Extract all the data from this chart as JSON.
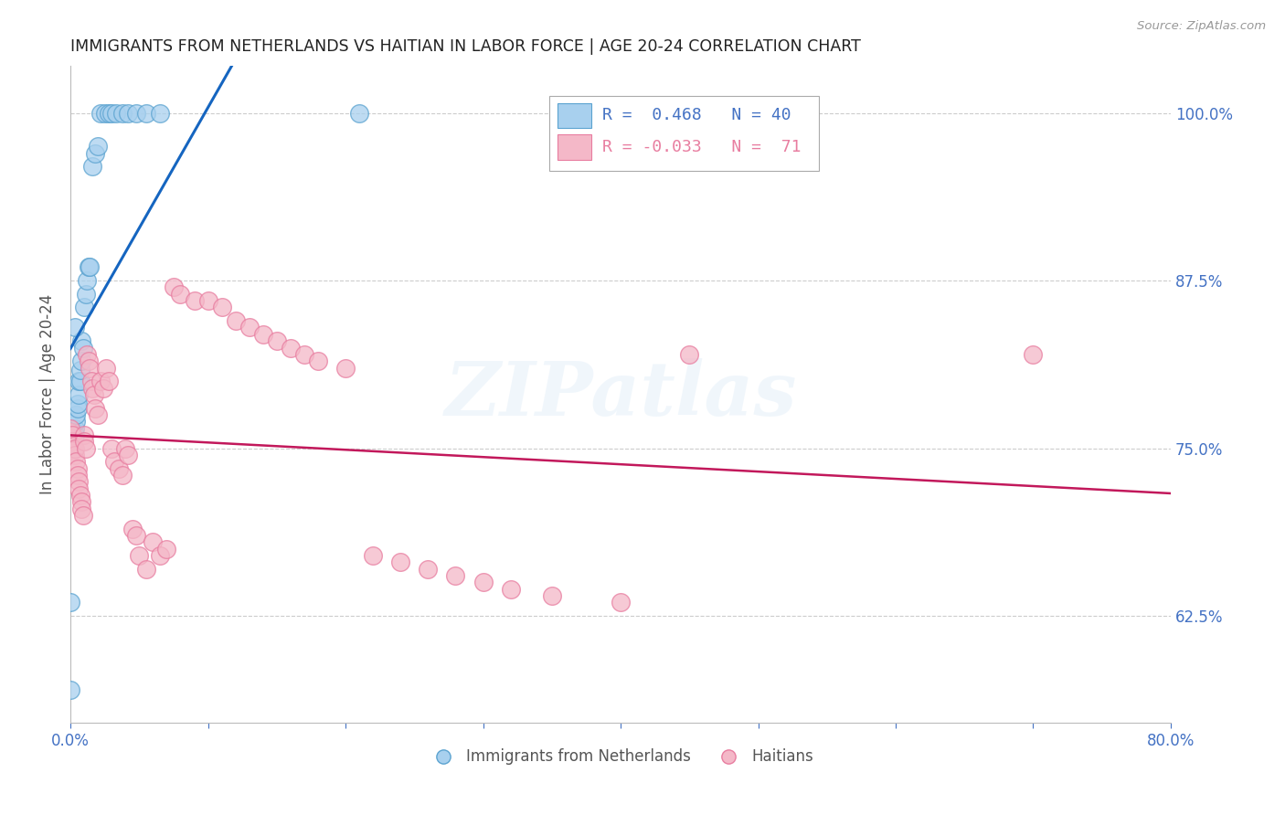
{
  "title": "IMMIGRANTS FROM NETHERLANDS VS HAITIAN IN LABOR FORCE | AGE 20-24 CORRELATION CHART",
  "source": "Source: ZipAtlas.com",
  "ylabel": "In Labor Force | Age 20-24",
  "xlim": [
    0.0,
    0.8
  ],
  "ylim": [
    0.545,
    1.035
  ],
  "yticks": [
    0.625,
    0.75,
    0.875,
    1.0
  ],
  "ytick_labels": [
    "62.5%",
    "75.0%",
    "87.5%",
    "100.0%"
  ],
  "xticks": [
    0.0,
    0.1,
    0.2,
    0.3,
    0.4,
    0.5,
    0.6,
    0.7,
    0.8
  ],
  "blue_color": "#a8d0ee",
  "pink_color": "#f4b8c8",
  "blue_edge": "#5ba3d0",
  "pink_edge": "#e87da0",
  "trend_blue": "#1565c0",
  "trend_pink": "#c2185b",
  "legend_label_blue": "Immigrants from Netherlands",
  "legend_label_pink": "Haitians",
  "watermark": "ZIPatlas",
  "background_color": "#ffffff",
  "title_color": "#222222",
  "axis_label_color": "#4472c4",
  "right_tick_color": "#4472c4",
  "blue_x": [
    0.0,
    0.0,
    0.001,
    0.001,
    0.001,
    0.002,
    0.002,
    0.003,
    0.003,
    0.004,
    0.004,
    0.005,
    0.005,
    0.006,
    0.006,
    0.007,
    0.007,
    0.008,
    0.008,
    0.009,
    0.01,
    0.011,
    0.012,
    0.013,
    0.014,
    0.016,
    0.018,
    0.02,
    0.022,
    0.025,
    0.028,
    0.03,
    0.033,
    0.038,
    0.042,
    0.048,
    0.055,
    0.065,
    0.21,
    0.003
  ],
  "blue_y": [
    0.57,
    0.635,
    0.75,
    0.755,
    0.758,
    0.76,
    0.763,
    0.76,
    0.765,
    0.77,
    0.775,
    0.78,
    0.783,
    0.79,
    0.8,
    0.8,
    0.808,
    0.815,
    0.83,
    0.825,
    0.855,
    0.865,
    0.875,
    0.885,
    0.885,
    0.96,
    0.97,
    0.975,
    1.0,
    1.0,
    1.0,
    1.0,
    1.0,
    1.0,
    1.0,
    1.0,
    1.0,
    1.0,
    1.0,
    0.84
  ],
  "pink_x": [
    0.0,
    0.0,
    0.0,
    0.0,
    0.0,
    0.001,
    0.001,
    0.002,
    0.002,
    0.003,
    0.003,
    0.004,
    0.005,
    0.005,
    0.006,
    0.006,
    0.007,
    0.008,
    0.008,
    0.009,
    0.01,
    0.01,
    0.011,
    0.012,
    0.013,
    0.014,
    0.015,
    0.016,
    0.017,
    0.018,
    0.02,
    0.022,
    0.024,
    0.026,
    0.028,
    0.03,
    0.032,
    0.035,
    0.038,
    0.04,
    0.042,
    0.045,
    0.048,
    0.05,
    0.055,
    0.06,
    0.065,
    0.07,
    0.075,
    0.08,
    0.09,
    0.1,
    0.11,
    0.12,
    0.13,
    0.14,
    0.15,
    0.16,
    0.17,
    0.18,
    0.2,
    0.22,
    0.24,
    0.26,
    0.28,
    0.3,
    0.32,
    0.35,
    0.4,
    0.45,
    0.7
  ],
  "pink_y": [
    0.75,
    0.753,
    0.757,
    0.762,
    0.765,
    0.755,
    0.76,
    0.752,
    0.748,
    0.745,
    0.75,
    0.74,
    0.735,
    0.73,
    0.725,
    0.72,
    0.715,
    0.71,
    0.705,
    0.7,
    0.76,
    0.755,
    0.75,
    0.82,
    0.815,
    0.81,
    0.8,
    0.795,
    0.79,
    0.78,
    0.775,
    0.8,
    0.795,
    0.81,
    0.8,
    0.75,
    0.74,
    0.735,
    0.73,
    0.75,
    0.745,
    0.69,
    0.685,
    0.67,
    0.66,
    0.68,
    0.67,
    0.675,
    0.87,
    0.865,
    0.86,
    0.86,
    0.855,
    0.845,
    0.84,
    0.835,
    0.83,
    0.825,
    0.82,
    0.815,
    0.81,
    0.67,
    0.665,
    0.66,
    0.655,
    0.65,
    0.645,
    0.64,
    0.635,
    0.82,
    0.82
  ]
}
